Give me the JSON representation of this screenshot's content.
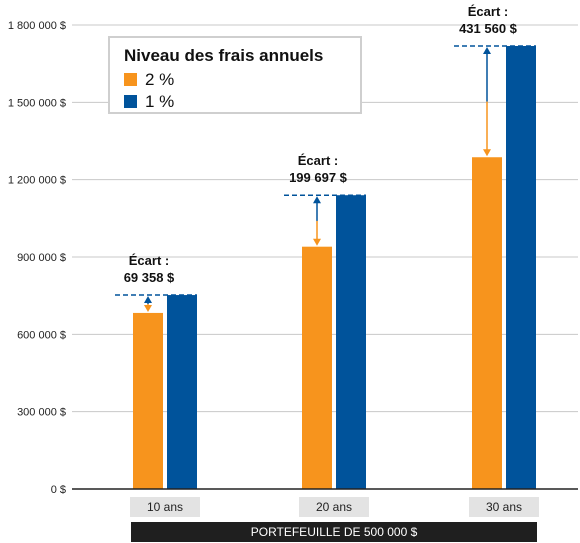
{
  "chart_data": {
    "type": "bar",
    "categories": [
      "10 ans",
      "20 ans",
      "30 ans"
    ],
    "series": [
      {
        "name": "2 %",
        "color": "#f7941d",
        "values": [
          683000,
          940000,
          1287000
        ]
      },
      {
        "name": "1 %",
        "color": "#00539b",
        "values": [
          752358,
          1139697,
          1718560
        ]
      }
    ],
    "ylim": [
      0,
      1800000
    ],
    "yticks": [
      0,
      300000,
      600000,
      900000,
      1200000,
      1500000,
      1800000
    ],
    "ytick_labels": [
      "0 $",
      "300 000 $",
      "600 000 $",
      "900 000 $",
      "1 200 000 $",
      "1 500 000 $",
      "1 800 000 $"
    ],
    "annotations": [
      {
        "label": "Écart :",
        "value": "69 358 $"
      },
      {
        "label": "Écart :",
        "value": "199 697 $"
      },
      {
        "label": "Écart :",
        "value": "431 560 $"
      }
    ],
    "legend": {
      "title": "Niveau des frais annuels",
      "position": "top-left"
    },
    "xlabel": "PORTEFEUILLE DE 500 000 $",
    "grid": true
  }
}
